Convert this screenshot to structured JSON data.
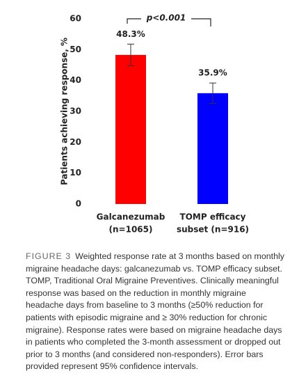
{
  "chart_data": {
    "type": "bar",
    "y_label": "Patients achieving response, %",
    "categories": [
      [
        "Galcanezumab",
        "(n=1065)"
      ],
      [
        "TOMP efficacy",
        "subset (n=916)"
      ]
    ],
    "values": [
      48.3,
      35.9
    ],
    "value_labels": [
      "48.3%",
      "35.9%"
    ],
    "errors": [
      3.5,
      3.3
    ],
    "colors": [
      "#ff0000",
      "#0000ff"
    ],
    "ylim": [
      0,
      60
    ],
    "yticks": [
      0,
      10,
      20,
      30,
      40,
      50,
      60
    ],
    "annotation": "p<0.001"
  },
  "caption": {
    "label": "FIGURE 3",
    "text": "Weighted response rate at 3 months based on monthly migraine headache days: galcanezumab vs. TOMP efficacy subset. TOMP, Traditional Oral Migraine Preventives. Clinically meaningful response was based on the reduction in monthly migraine headache days from baseline to 3 months (≥50% reduction for patients with episodic migraine and ≥ 30% reduction for chronic migraine). Response rates were based on migraine headache days in patients who completed the 3-month assessment or dropped out prior to 3 months (and considered non-responders). Error bars provided represent 95% confidence intervals."
  }
}
